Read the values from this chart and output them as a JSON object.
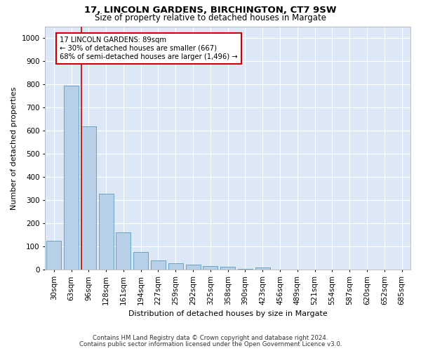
{
  "title1": "17, LINCOLN GARDENS, BIRCHINGTON, CT7 9SW",
  "title2": "Size of property relative to detached houses in Margate",
  "xlabel": "Distribution of detached houses by size in Margate",
  "ylabel": "Number of detached properties",
  "footnote1": "Contains HM Land Registry data © Crown copyright and database right 2024.",
  "footnote2": "Contains public sector information licensed under the Open Government Licence v3.0.",
  "annotation_line1": "17 LINCOLN GARDENS: 89sqm",
  "annotation_line2": "← 30% of detached houses are smaller (667)",
  "annotation_line3": "68% of semi-detached houses are larger (1,496) →",
  "bar_categories": [
    "30sqm",
    "63sqm",
    "96sqm",
    "128sqm",
    "161sqm",
    "194sqm",
    "227sqm",
    "259sqm",
    "292sqm",
    "325sqm",
    "358sqm",
    "390sqm",
    "423sqm",
    "456sqm",
    "489sqm",
    "521sqm",
    "554sqm",
    "587sqm",
    "620sqm",
    "652sqm",
    "685sqm"
  ],
  "bar_values": [
    125,
    795,
    620,
    328,
    163,
    78,
    40,
    27,
    22,
    15,
    14,
    5,
    10,
    0,
    0,
    0,
    0,
    0,
    0,
    0,
    0
  ],
  "bar_color": "#b8cfe8",
  "bar_edge_color": "#5a9abf",
  "red_line_xindex": 2,
  "ylim": [
    0,
    1050
  ],
  "yticks": [
    0,
    100,
    200,
    300,
    400,
    500,
    600,
    700,
    800,
    900,
    1000
  ],
  "annotation_box_color": "#ffffff",
  "annotation_box_edge": "#cc0000",
  "red_line_color": "#cc0000",
  "background_color": "#dce8f5",
  "grid_color": "#ffffff"
}
